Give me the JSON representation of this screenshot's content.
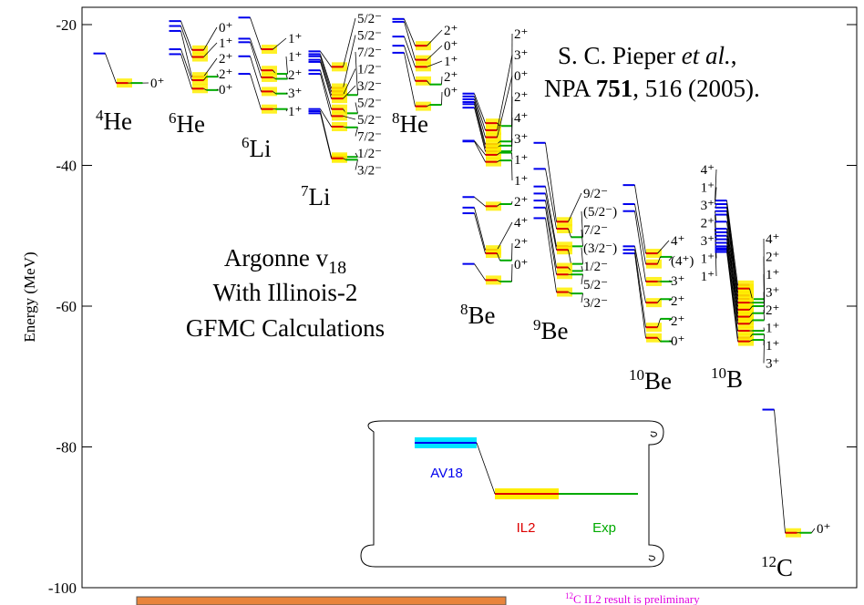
{
  "chart_data": {
    "type": "level-scheme",
    "y_label": "Energy (MeV)",
    "ylim": [
      -100,
      -20
    ],
    "yticks": [
      -100,
      -80,
      -60,
      -40,
      -20
    ],
    "citation": {
      "line1": [
        "S. C. Pieper ",
        "et al.",
        ","
      ],
      "line2": [
        "NPA ",
        "751",
        ", 516 (2005)."
      ]
    },
    "model": {
      "name": "Argonne v",
      "sub": "18",
      "line2": "With Illinois-2",
      "line3": "GFMC Calculations"
    },
    "legend": [
      {
        "name": "AV18",
        "color": "#0000ee"
      },
      {
        "name": "IL2",
        "color": "#dd0000"
      },
      {
        "name": "Exp",
        "color": "#00aa00"
      }
    ],
    "footnote": {
      "mass": "12",
      "text": "C IL2 result is preliminary"
    },
    "nuclei": [
      {
        "mass": "4",
        "symbol": "He",
        "levels": [
          {
            "spin": "0⁺",
            "av18": -24.1,
            "il2": -28.3,
            "exp": -28.3
          }
        ]
      },
      {
        "mass": "6",
        "symbol": "He",
        "levels": [
          {
            "spin": "0⁺",
            "av18": -19.5,
            "il2": -23.6,
            "exp": null
          },
          {
            "spin": "1⁺",
            "av18": -20.2,
            "il2": -24.6,
            "exp": null
          },
          {
            "spin": "2⁺",
            "av18": -20.9,
            "il2": -27.4,
            "exp": null
          },
          {
            "spin": "2⁺",
            "av18": -23.5,
            "il2": -27.9,
            "exp": -27.4
          },
          {
            "spin": "0⁺",
            "av18": -24.2,
            "il2": -29.1,
            "exp": -29.3
          }
        ]
      },
      {
        "mass": "6",
        "symbol": "Li",
        "levels": [
          {
            "spin": "1⁺",
            "av18": -19.0,
            "il2": -23.5,
            "exp": null
          },
          {
            "spin": "1⁺",
            "av18": -22.0,
            "il2": -26.5,
            "exp": -27.0
          },
          {
            "spin": "2⁺",
            "av18": -22.5,
            "il2": -27.5,
            "exp": -27.7
          },
          {
            "spin": "3⁺",
            "av18": -24.5,
            "il2": -29.5,
            "exp": -29.8
          },
          {
            "spin": "1⁺",
            "av18": -27.0,
            "il2": -32.0,
            "exp": -32.0
          }
        ]
      },
      {
        "mass": "7",
        "symbol": "Li",
        "levels": [
          {
            "spin": "5/2⁻",
            "av18": -23.8,
            "il2": -26.0,
            "exp": null
          },
          {
            "spin": "5/2⁻",
            "av18": -24.2,
            "il2": -29.0,
            "exp": null
          },
          {
            "spin": "7/2⁻",
            "av18": -24.5,
            "il2": -29.5,
            "exp": -30.0
          },
          {
            "spin": "1/2⁻",
            "av18": -25.0,
            "il2": -30.0,
            "exp": null
          },
          {
            "spin": "3/2⁻",
            "av18": -25.3,
            "il2": -30.5,
            "exp": null
          },
          {
            "spin": "5/2⁻",
            "av18": -26.5,
            "il2": -32.0,
            "exp": -32.6
          },
          {
            "spin": "5/2⁻",
            "av18": -27.0,
            "il2": -33.0,
            "exp": null
          },
          {
            "spin": "7/2⁻",
            "av18": -32.0,
            "il2": -34.5,
            "exp": -34.6
          },
          {
            "spin": "1/2⁻",
            "av18": -32.3,
            "il2": -38.8,
            "exp": -38.8
          },
          {
            "spin": "3/2⁻",
            "av18": -32.6,
            "il2": -39.0,
            "exp": -39.2
          }
        ]
      },
      {
        "mass": "8",
        "symbol": "He",
        "levels": [
          {
            "spin": "2⁺",
            "av18": -19.2,
            "il2": -23.0,
            "exp": null
          },
          {
            "spin": "0⁺",
            "av18": -19.6,
            "il2": -25.0,
            "exp": null
          },
          {
            "spin": "1⁺",
            "av18": -21.7,
            "il2": -26.0,
            "exp": null
          },
          {
            "spin": "2⁺",
            "av18": -23.0,
            "il2": -28.0,
            "exp": -28.5
          },
          {
            "spin": "0⁺",
            "av18": -24.0,
            "il2": -31.6,
            "exp": -31.4
          }
        ]
      },
      {
        "mass": "8",
        "symbol": "Be",
        "levels": [
          {
            "spin": "2⁺",
            "av18": -29.8,
            "il2": -34.0,
            "exp": -34.4
          },
          {
            "spin": "3⁺",
            "av18": -30.2,
            "il2": -35.0,
            "exp": null
          },
          {
            "spin": "0⁺",
            "av18": -30.6,
            "il2": -36.0,
            "exp": null
          },
          {
            "spin": "2⁺",
            "av18": -31.0,
            "il2": -37.0,
            "exp": -36.6
          },
          {
            "spin": "4⁺",
            "av18": -31.3,
            "il2": -37.5,
            "exp": -37.2
          },
          {
            "spin": "3⁺",
            "av18": -31.8,
            "il2": -38.0,
            "exp": -38.0
          },
          {
            "spin": "1⁺",
            "av18": -36.5,
            "il2": -38.5,
            "exp": -38.2
          },
          {
            "spin": "1⁺",
            "av18": -36.6,
            "il2": -39.5,
            "exp": -39.3
          },
          {
            "spin": "2⁺",
            "av18": -44.5,
            "il2": -45.8,
            "exp": -45.5
          },
          {
            "spin": "4⁺",
            "av18": -46.0,
            "il2": -52.0,
            "exp": null
          },
          {
            "spin": "2⁺",
            "av18": -46.8,
            "il2": -52.5,
            "exp": -53.5
          },
          {
            "spin": "0⁺",
            "av18": -54.0,
            "il2": -56.3,
            "exp": -56.5
          }
        ]
      },
      {
        "mass": "9",
        "symbol": "Be",
        "levels": [
          {
            "spin": "9/2⁻",
            "av18": -36.8,
            "il2": -48.0,
            "exp": null
          },
          {
            "spin": "(5/2⁻)",
            "av18": -40.5,
            "il2": -49.0,
            "exp": -50.2
          },
          {
            "spin": "7/2⁻",
            "av18": -43.0,
            "il2": -51.5,
            "exp": -51.5
          },
          {
            "spin": "(3/2⁻)",
            "av18": -44.0,
            "il2": -52.0,
            "exp": -54.0
          },
          {
            "spin": "1/2⁻",
            "av18": -45.0,
            "il2": -54.5,
            "exp": -55.0
          },
          {
            "spin": "5/2⁻",
            "av18": -46.0,
            "il2": -55.5,
            "exp": -55.5
          },
          {
            "spin": "3/2⁻",
            "av18": -47.5,
            "il2": -58.0,
            "exp": -58.2
          }
        ]
      },
      {
        "mass": "10",
        "symbol": "Be",
        "levels": [
          {
            "spin": "4⁺",
            "av18": -42.8,
            "il2": -52.5,
            "exp": null
          },
          {
            "spin": "(4⁺)",
            "av18": -45.5,
            "il2": -54.0,
            "exp": -53.0
          },
          {
            "spin": "3⁺",
            "av18": -46.5,
            "il2": -56.5,
            "exp": -56.5
          },
          {
            "spin": "2⁺",
            "av18": -51.5,
            "il2": -59.5,
            "exp": -59.0
          },
          {
            "spin": "2⁺",
            "av18": -52.0,
            "il2": -63.0,
            "exp": -61.8
          },
          {
            "spin": "0⁺",
            "av18": -52.5,
            "il2": -64.5,
            "exp": -65.0
          }
        ]
      },
      {
        "mass": "10",
        "symbol": "B",
        "levels": [
          {
            "spin": "4⁺",
            "av18": -45.0,
            "il2": -57.0,
            "exp": null
          },
          {
            "spin": "1⁺",
            "av18": -45.5,
            "il2": -58.0,
            "exp": null
          },
          {
            "spin": "3⁺",
            "av18": -46.0,
            "il2": -58.5,
            "exp": null
          },
          {
            "spin": "2⁺",
            "av18": -46.5,
            "il2": -59.0,
            "exp": null
          },
          {
            "spin": "3⁺",
            "av18": -47.0,
            "il2": -60.0,
            "exp": null
          },
          {
            "spin": "1⁺",
            "av18": -48.0,
            "il2": -61.0,
            "exp": null
          },
          {
            "spin": "1⁺",
            "av18": -49.0,
            "il2": -62.0,
            "exp": null
          },
          {
            "spin": "4⁺",
            "av18": -49.5,
            "il2": -57.5,
            "exp": -59.0
          },
          {
            "spin": "2⁺",
            "av18": -50.0,
            "il2": -59.5,
            "exp": -59.5
          },
          {
            "spin": "1⁺",
            "av18": -50.5,
            "il2": -60.5,
            "exp": -60.0
          },
          {
            "spin": "3⁺",
            "av18": -51.0,
            "il2": -61.5,
            "exp": -61.0
          },
          {
            "spin": "2⁺",
            "av18": -51.5,
            "il2": -62.5,
            "exp": -62.0
          },
          {
            "spin": "1⁺",
            "av18": -51.8,
            "il2": -63.5,
            "exp": -63.5
          },
          {
            "spin": "1⁺",
            "av18": -52.0,
            "il2": -64.5,
            "exp": -64.0
          },
          {
            "spin": "3⁺",
            "av18": -52.3,
            "il2": -65.0,
            "exp": -64.8
          }
        ]
      },
      {
        "mass": "12",
        "symbol": "C",
        "levels": [
          {
            "spin": "0⁺",
            "av18": -74.7,
            "il2": -92.2,
            "exp": -92.2
          }
        ]
      }
    ]
  }
}
